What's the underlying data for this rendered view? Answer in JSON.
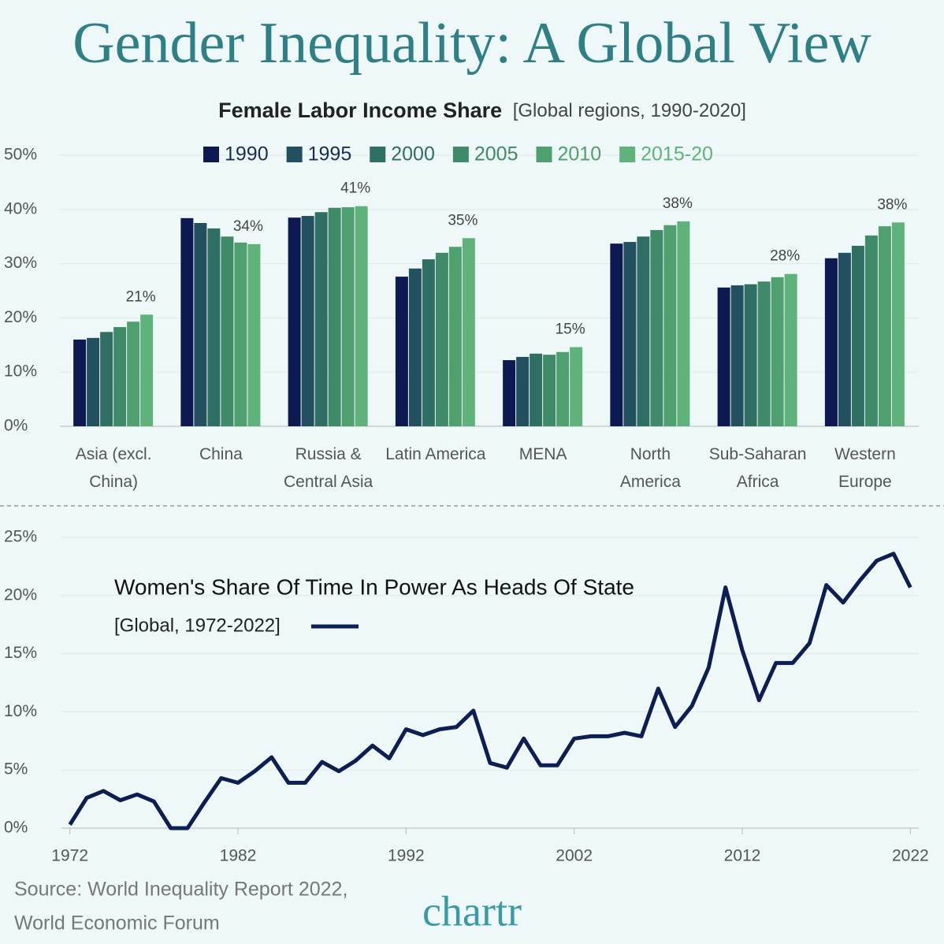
{
  "title": "Gender Inequality: A Global View",
  "chart_data": [
    {
      "type": "bar",
      "title": "Female Labor Income Share",
      "subtitle": "[Global regions, 1990-2020]",
      "categories": [
        "Asia (excl. China)",
        "China",
        "Russia & Central Asia",
        "Latin America",
        "MENA",
        "North America",
        "Sub-Saharan Africa",
        "Western Europe"
      ],
      "series": [
        {
          "name": "1990",
          "color": "#0d1a52",
          "values": [
            16.0,
            38.4,
            38.5,
            27.6,
            12.2,
            33.7,
            25.6,
            31.0
          ]
        },
        {
          "name": "1995",
          "color": "#22505f",
          "values": [
            16.3,
            37.5,
            38.8,
            29.1,
            12.8,
            34.0,
            26.0,
            32.0
          ]
        },
        {
          "name": "2000",
          "color": "#2f6e62",
          "values": [
            17.4,
            36.5,
            39.5,
            30.8,
            13.4,
            35.0,
            26.2,
            33.3
          ]
        },
        {
          "name": "2005",
          "color": "#3f8a68",
          "values": [
            18.3,
            35.0,
            40.3,
            32.0,
            13.2,
            36.2,
            26.7,
            35.2
          ]
        },
        {
          "name": "2010",
          "color": "#4fa06f",
          "values": [
            19.3,
            33.9,
            40.4,
            33.1,
            13.7,
            37.1,
            27.5,
            36.9
          ]
        },
        {
          "name": "2015-20",
          "color": "#5fb37a",
          "values": [
            20.6,
            33.6,
            40.6,
            34.7,
            14.6,
            37.8,
            28.1,
            37.6
          ],
          "value_labels": [
            "21%",
            "34%",
            "41%",
            "35%",
            "15%",
            "38%",
            "28%",
            "38%"
          ]
        }
      ],
      "ylim": [
        0,
        50
      ],
      "yticks": [
        {
          "value": 0,
          "label": "0%"
        },
        {
          "value": 10,
          "label": "10%"
        },
        {
          "value": 20,
          "label": "20%"
        },
        {
          "value": 30,
          "label": "30%"
        },
        {
          "value": 40,
          "label": "40%"
        },
        {
          "value": 50,
          "label": "50%"
        }
      ],
      "grid": true,
      "legend": "top"
    },
    {
      "type": "line",
      "title": "Women's Share Of Time In Power As Heads Of State",
      "subtitle": "[Global, 1972-2022]",
      "color": "#0d1f52",
      "x": [
        1972,
        1973,
        1974,
        1975,
        1976,
        1977,
        1978,
        1979,
        1980,
        1981,
        1982,
        1983,
        1984,
        1985,
        1986,
        1987,
        1988,
        1989,
        1990,
        1991,
        1992,
        1993,
        1994,
        1995,
        1996,
        1997,
        1998,
        1999,
        2000,
        2001,
        2002,
        2003,
        2004,
        2005,
        2006,
        2007,
        2008,
        2009,
        2010,
        2011,
        2012,
        2013,
        2014,
        2015,
        2016,
        2017,
        2018,
        2019,
        2020,
        2021,
        2022
      ],
      "values": [
        0.3,
        2.6,
        3.2,
        2.4,
        2.9,
        2.3,
        0,
        0,
        2.2,
        4.3,
        3.9,
        4.9,
        6.1,
        3.9,
        3.9,
        5.7,
        4.9,
        5.8,
        7.1,
        6.0,
        8.5,
        8.0,
        8.5,
        8.7,
        10.1,
        5.6,
        5.2,
        7.7,
        5.4,
        5.4,
        7.7,
        7.9,
        7.9,
        8.2,
        7.9,
        12.0,
        8.7,
        10.5,
        13.8,
        20.7,
        15.3,
        11.0,
        14.2,
        14.2,
        15.9,
        20.9,
        19.4,
        21.3,
        23.0,
        23.6,
        20.7
      ],
      "xlim": [
        1971.5,
        2022.5
      ],
      "xticks": [
        1972,
        1982,
        1992,
        2002,
        2012,
        2022
      ],
      "ylim": [
        0,
        25
      ],
      "yticks": [
        {
          "value": 0,
          "label": "0%"
        },
        {
          "value": 5,
          "label": "5%"
        },
        {
          "value": 10,
          "label": "10%"
        },
        {
          "value": 15,
          "label": "15%"
        },
        {
          "value": 20,
          "label": "20%"
        },
        {
          "value": 25,
          "label": "25%"
        }
      ],
      "grid": true
    }
  ],
  "source": [
    "Source: World Inequality Report 2022,",
    "World Economic Forum"
  ],
  "brand": "chartr"
}
